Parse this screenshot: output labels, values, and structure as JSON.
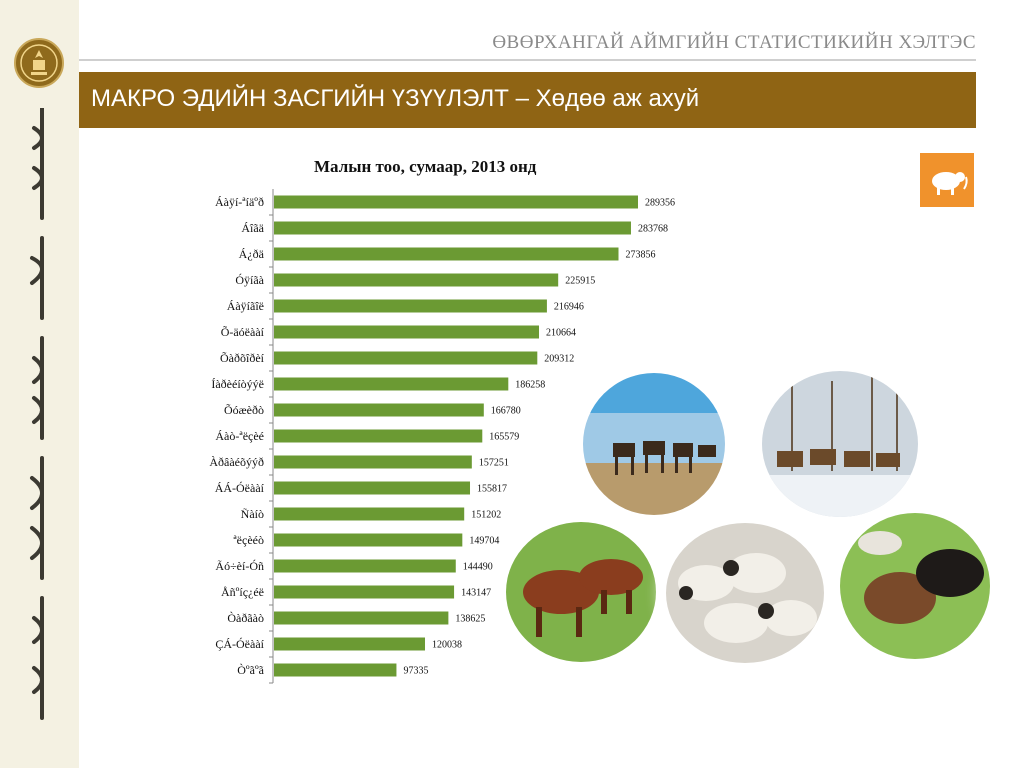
{
  "header": {
    "agency": "ӨВӨРХАНГАЙ АЙМГИЙН СТАТИСТИКИЙН ХЭЛТЭС",
    "title": "МАКРО ЭДИЙН ЗАСГИЙН ҮЗҮҮЛЭЛТ – Хөдөө аж ахуй"
  },
  "colors": {
    "bar": "#6b9a33",
    "title_band": "#8f6414",
    "icon_bg": "#f0922c"
  },
  "icons": [
    "emblem-logo",
    "sheep-icon"
  ],
  "chart_data": {
    "type": "bar",
    "orientation": "horizontal",
    "title": "Малын тоо, сумаар, 2013 онд",
    "categories": [
      "Áàÿí-ªíäºð",
      "Áîãä",
      "Á¿ðä",
      "Óÿíãà",
      "Áàÿíãîë",
      "Õ-äóëààí",
      "Õàðõîðèí",
      "Íàðèéíòýýë",
      "Õóæèðò",
      "Áàò-ªëçèé",
      "Àðâàéõýýð",
      "ÁÁ-Óëààí",
      "Ñàíò",
      "ªëçèéò",
      "Ãó÷èí-Óñ",
      "Åñºíç¿éë",
      "Òàðãàò",
      "ÇÁ-Óëààí",
      "Òºãºã"
    ],
    "values": [
      289356,
      283768,
      273856,
      225915,
      216946,
      210664,
      209312,
      186258,
      166780,
      165579,
      157251,
      155817,
      151202,
      149704,
      144490,
      143147,
      138625,
      120038,
      97335
    ],
    "xlim": [
      0,
      300000
    ],
    "grid": false,
    "legend": "none"
  }
}
